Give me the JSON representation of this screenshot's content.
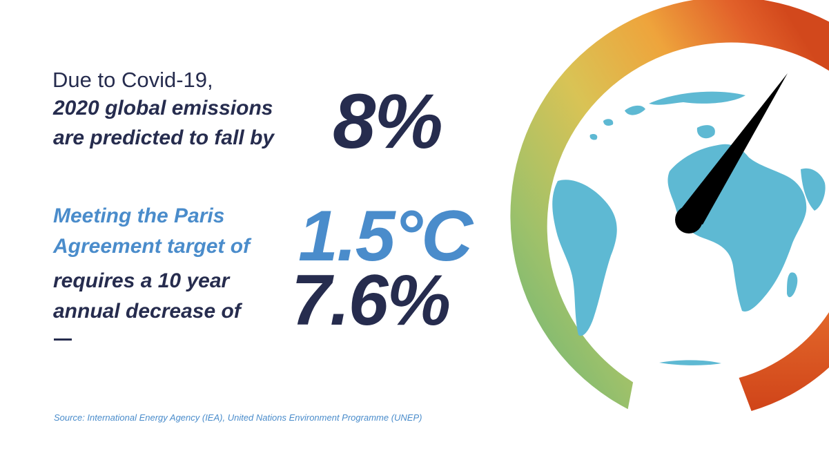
{
  "headline": {
    "intro": "Due to Covid-19,",
    "line2": "2020 global emissions",
    "line3": "are predicted to fall by",
    "figure": "8%"
  },
  "paris": {
    "line1": "Meeting the Paris",
    "line2": "Agreement target of",
    "figure": "1.5°C"
  },
  "decrease": {
    "line1": "requires a 10 year",
    "line2": "annual decrease of",
    "figure": "7.6%"
  },
  "source": "Source: International Energy Agency (IEA), United Nations Environment Programme (UNEP)",
  "colors": {
    "dark_navy": "#262c4e",
    "accent_blue": "#4a8ccb",
    "globe_blue": "#5eb9d3",
    "needle": "#000000",
    "gauge_gradient": [
      "#63b47a",
      "#9ec16a",
      "#d9c355",
      "#eea43c",
      "#e2612a",
      "#d2481c"
    ]
  },
  "icons": {
    "gauge": "emissions-gauge-icon",
    "globe": "globe-icon",
    "needle": "gauge-needle-icon"
  }
}
